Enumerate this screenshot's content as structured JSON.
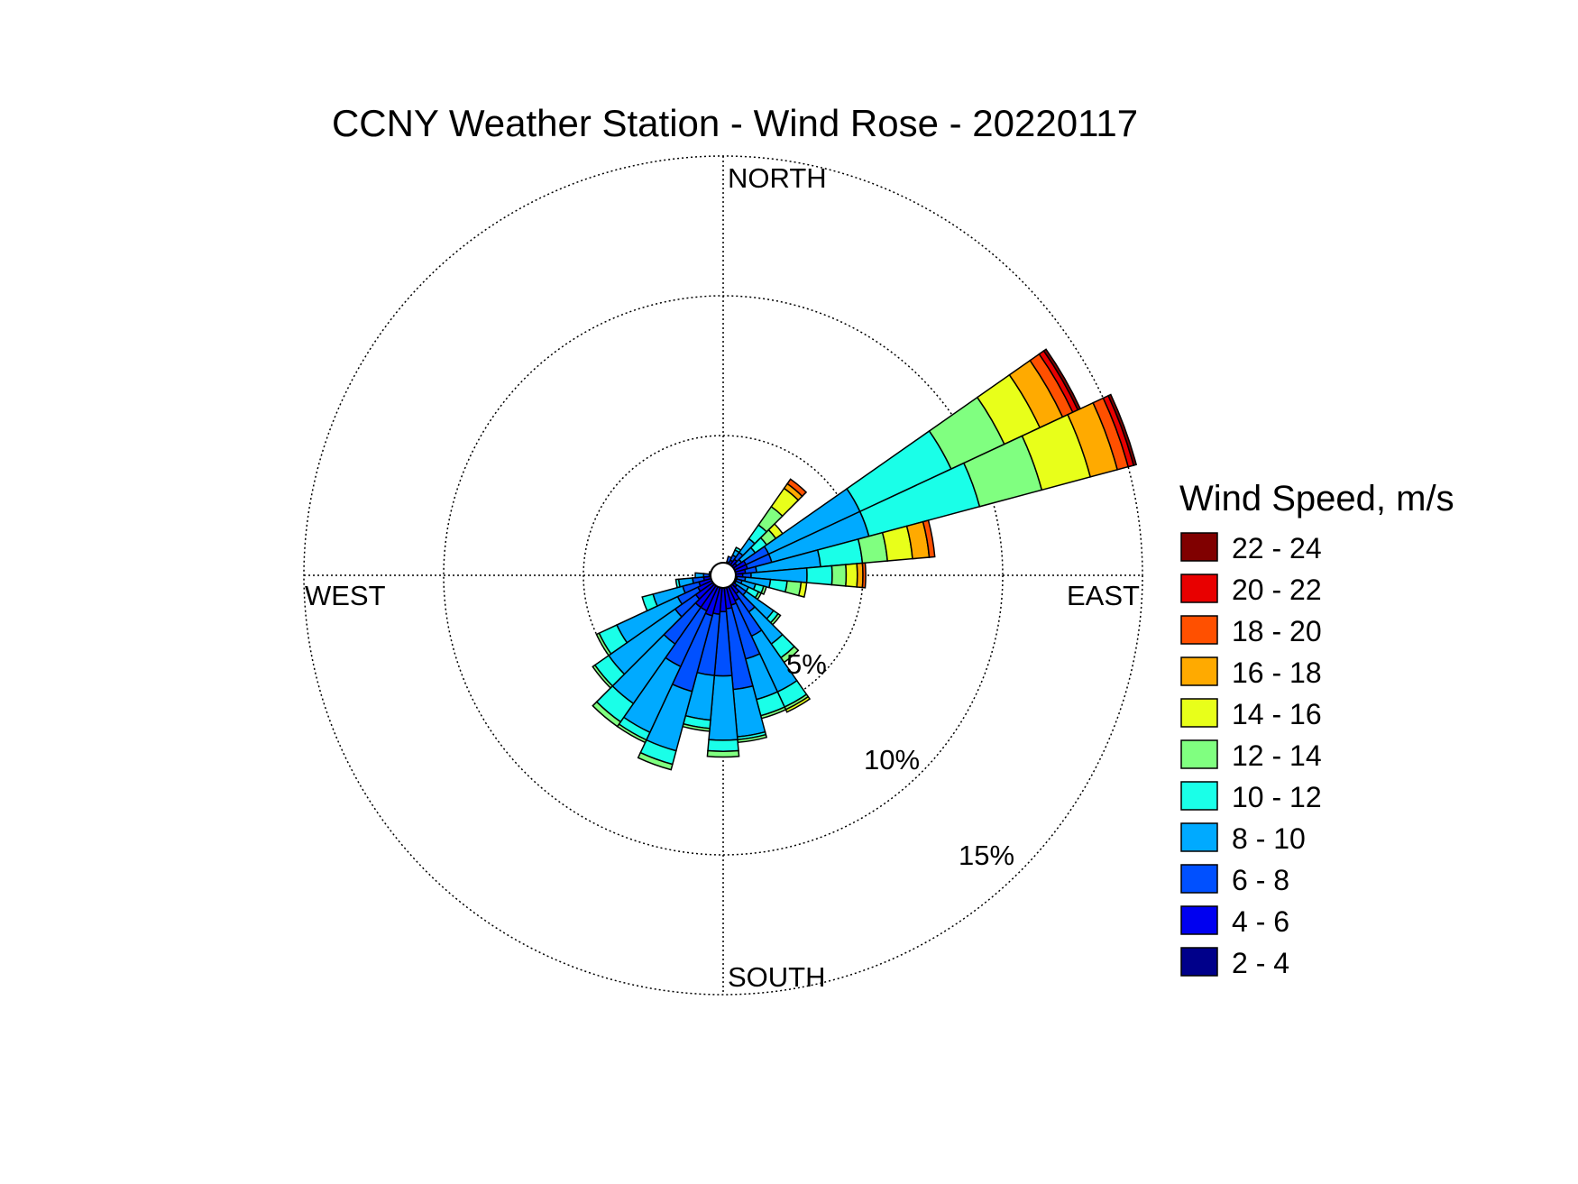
{
  "chart_data": {
    "type": "wind-rose",
    "title": "CCNY Weather Station - Wind Rose - 20220117",
    "direction_labels": {
      "north": "NORTH",
      "east": "EAST",
      "south": "SOUTH",
      "west": "WEST"
    },
    "ring_labels": [
      "5%",
      "10%",
      "15%"
    ],
    "ring_values": [
      5,
      10,
      15
    ],
    "r_max": 15,
    "inner_hole": 0.3,
    "legend": {
      "title": "Wind Speed, m/s",
      "placement": "right",
      "items": [
        {
          "label": "22 - 24",
          "color": "#800000"
        },
        {
          "label": "20 - 22",
          "color": "#e80000"
        },
        {
          "label": "18 - 20",
          "color": "#ff5000"
        },
        {
          "label": "16 - 18",
          "color": "#ffaa00"
        },
        {
          "label": "14 - 16",
          "color": "#e8ff1a"
        },
        {
          "label": "12 - 14",
          "color": "#80ff80"
        },
        {
          "label": "10 - 12",
          "color": "#1affe8"
        },
        {
          "label": "8 - 10",
          "color": "#00aaff"
        },
        {
          "label": "6 - 8",
          "color": "#0050ff"
        },
        {
          "label": "4 - 6",
          "color": "#0000f0"
        },
        {
          "label": "2 - 4",
          "color": "#00008a"
        }
      ]
    },
    "bin_colors": [
      "#00008a",
      "#0000f0",
      "#0050ff",
      "#00aaff",
      "#1affe8",
      "#80ff80",
      "#e8ff1a",
      "#ffaa00",
      "#ff5000",
      "#e80000",
      "#800000"
    ],
    "speed_bins": [
      "2 - 4",
      "4 - 6",
      "6 - 8",
      "8 - 10",
      "10 - 12",
      "12 - 14",
      "14 - 16",
      "16 - 18",
      "18 - 20",
      "20 - 22",
      "22 - 24"
    ],
    "sector_width_deg": 10,
    "cumulative_note": "boundaries are cumulative frequency (%) at the outer edge of each speed bin, starting from the 2-4 bin",
    "sectors": [
      {
        "direction_deg": 30,
        "boundaries": [
          0.3,
          0.6,
          0.8,
          1.0,
          1.1
        ]
      },
      {
        "direction_deg": 40,
        "boundaries": [
          0.4,
          0.7,
          1.0,
          1.6,
          2.2,
          3.0,
          3.8,
          4.0,
          4.2
        ]
      },
      {
        "direction_deg": 50,
        "boundaries": [
          0.4,
          0.6,
          0.8,
          1.4,
          1.9,
          2.3,
          2.6
        ]
      },
      {
        "direction_deg": 60,
        "boundaries": [
          0.4,
          0.9,
          1.8,
          5.4,
          9.0,
          11.1,
          12.5,
          13.4,
          13.8,
          14.0,
          14.1
        ]
      },
      {
        "direction_deg": 70,
        "boundaries": [
          0.4,
          0.9,
          1.8,
          5.4,
          9.5,
          11.8,
          13.6,
          14.6,
          15.0,
          15.2,
          15.3
        ]
      },
      {
        "direction_deg": 80,
        "boundaries": [
          0.4,
          0.8,
          1.2,
          3.5,
          5.0,
          5.9,
          6.8,
          7.4,
          7.6
        ]
      },
      {
        "direction_deg": 90,
        "boundaries": [
          0.4,
          0.7,
          1.0,
          3.0,
          3.9,
          4.4,
          4.8,
          5.0,
          5.1
        ]
      },
      {
        "direction_deg": 100,
        "boundaries": [
          0.3,
          0.5,
          0.8,
          1.7,
          2.3,
          2.8,
          3.0
        ]
      },
      {
        "direction_deg": 110,
        "boundaries": [
          0.3,
          0.5,
          0.7,
          1.2,
          1.5,
          1.6
        ]
      },
      {
        "direction_deg": 120,
        "boundaries": [
          0.3,
          0.4,
          0.5,
          1.0,
          1.4,
          1.5
        ]
      },
      {
        "direction_deg": 130,
        "boundaries": [
          0.3,
          0.6,
          1.0,
          2.2,
          2.4,
          2.5
        ]
      },
      {
        "direction_deg": 140,
        "boundaries": [
          0.3,
          0.8,
          1.6,
          3.0,
          3.6,
          3.8
        ]
      },
      {
        "direction_deg": 150,
        "boundaries": [
          0.4,
          1.0,
          2.4,
          4.6,
          5.2,
          5.3,
          5.4
        ]
      },
      {
        "direction_deg": 160,
        "boundaries": [
          0.4,
          1.1,
          3.1,
          4.6,
          5.2,
          5.3
        ]
      },
      {
        "direction_deg": 170,
        "boundaries": [
          0.4,
          1.2,
          4.1,
          5.8,
          5.9,
          6.0
        ]
      },
      {
        "direction_deg": 180,
        "boundaries": [
          0.4,
          1.3,
          3.6,
          5.9,
          6.3,
          6.5
        ]
      },
      {
        "direction_deg": 190,
        "boundaries": [
          0.4,
          1.4,
          3.6,
          5.2,
          5.5,
          5.6
        ]
      },
      {
        "direction_deg": 200,
        "boundaries": [
          0.4,
          1.5,
          4.3,
          6.5,
          7.0,
          7.2
        ]
      },
      {
        "direction_deg": 210,
        "boundaries": [
          0.4,
          1.4,
          3.6,
          6.2,
          6.5,
          6.6
        ]
      },
      {
        "direction_deg": 220,
        "boundaries": [
          0.4,
          1.4,
          3.0,
          5.6,
          6.4,
          6.6
        ]
      },
      {
        "direction_deg": 230,
        "boundaries": [
          0.4,
          1.2,
          2.1,
          5.0,
          5.6,
          5.7
        ]
      },
      {
        "direction_deg": 240,
        "boundaries": [
          0.4,
          1.0,
          1.8,
          4.2,
          4.9,
          5.0
        ]
      },
      {
        "direction_deg": 250,
        "boundaries": [
          0.4,
          0.9,
          1.5,
          2.6,
          3.0
        ]
      },
      {
        "direction_deg": 260,
        "boundaries": [
          0.4,
          0.7,
          1.1,
          1.6,
          1.7
        ]
      },
      {
        "direction_deg": 270,
        "boundaries": [
          0.3,
          0.5,
          0.7,
          1.0
        ]
      },
      {
        "direction_deg": 280,
        "boundaries": [
          0.3,
          0.4,
          0.5
        ]
      },
      {
        "direction_deg": 290,
        "boundaries": [
          0.3,
          0.4
        ]
      },
      {
        "direction_deg": 300,
        "boundaries": [
          0.3,
          0.35
        ]
      },
      {
        "direction_deg": 310,
        "boundaries": [
          0.3,
          0.35
        ]
      },
      {
        "direction_deg": 320,
        "boundaries": [
          0.3,
          0.35
        ]
      },
      {
        "direction_deg": 330,
        "boundaries": [
          0.3,
          0.35
        ]
      },
      {
        "direction_deg": 340,
        "boundaries": [
          0.3,
          0.35
        ]
      },
      {
        "direction_deg": 350,
        "boundaries": [
          0.3,
          0.35
        ]
      },
      {
        "direction_deg": 0,
        "boundaries": [
          0.3,
          0.35
        ]
      },
      {
        "direction_deg": 10,
        "boundaries": [
          0.3,
          0.4
        ]
      },
      {
        "direction_deg": 20,
        "boundaries": [
          0.3,
          0.5,
          0.7
        ]
      }
    ]
  }
}
